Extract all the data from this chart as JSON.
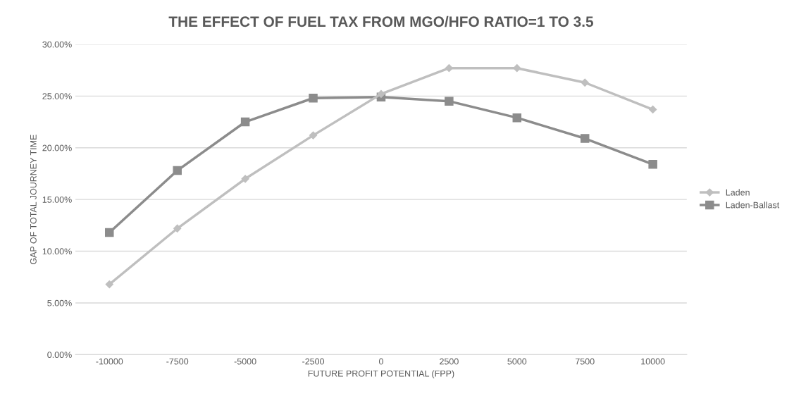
{
  "chart_data": {
    "type": "line",
    "title": "THE EFFECT OF FUEL TAX FROM MGO/HFO RATIO=1 TO 3.5",
    "xlabel": "FUTURE PROFIT POTENTIAL (FPP)",
    "ylabel": "GAP OF TOTAL JOURNEY TIME",
    "categories": [
      "-10000",
      "-7500",
      "-5000",
      "-2500",
      "0",
      "2500",
      "5000",
      "7500",
      "10000"
    ],
    "series": [
      {
        "name": "Laden",
        "color": "#bfbfbf",
        "marker": "diamond",
        "values": [
          6.8,
          12.2,
          17.0,
          21.2,
          25.2,
          27.7,
          27.7,
          26.3,
          23.7
        ]
      },
      {
        "name": "Laden-Ballast",
        "color": "#8c8c8c",
        "marker": "square",
        "values": [
          11.8,
          17.8,
          22.5,
          24.8,
          24.9,
          24.5,
          22.9,
          20.9,
          18.4
        ]
      }
    ],
    "ylim": [
      0,
      30
    ],
    "yticks": [
      {
        "value": 0,
        "label": "0.00%"
      },
      {
        "value": 5,
        "label": "5.00%"
      },
      {
        "value": 10,
        "label": "10.00%"
      },
      {
        "value": 15,
        "label": "15.00%"
      },
      {
        "value": 20,
        "label": "20.00%"
      },
      {
        "value": 25,
        "label": "25.00%"
      },
      {
        "value": 30,
        "label": "30.00%"
      }
    ],
    "grid": "y",
    "legend": "right",
    "line_style": "solid"
  }
}
